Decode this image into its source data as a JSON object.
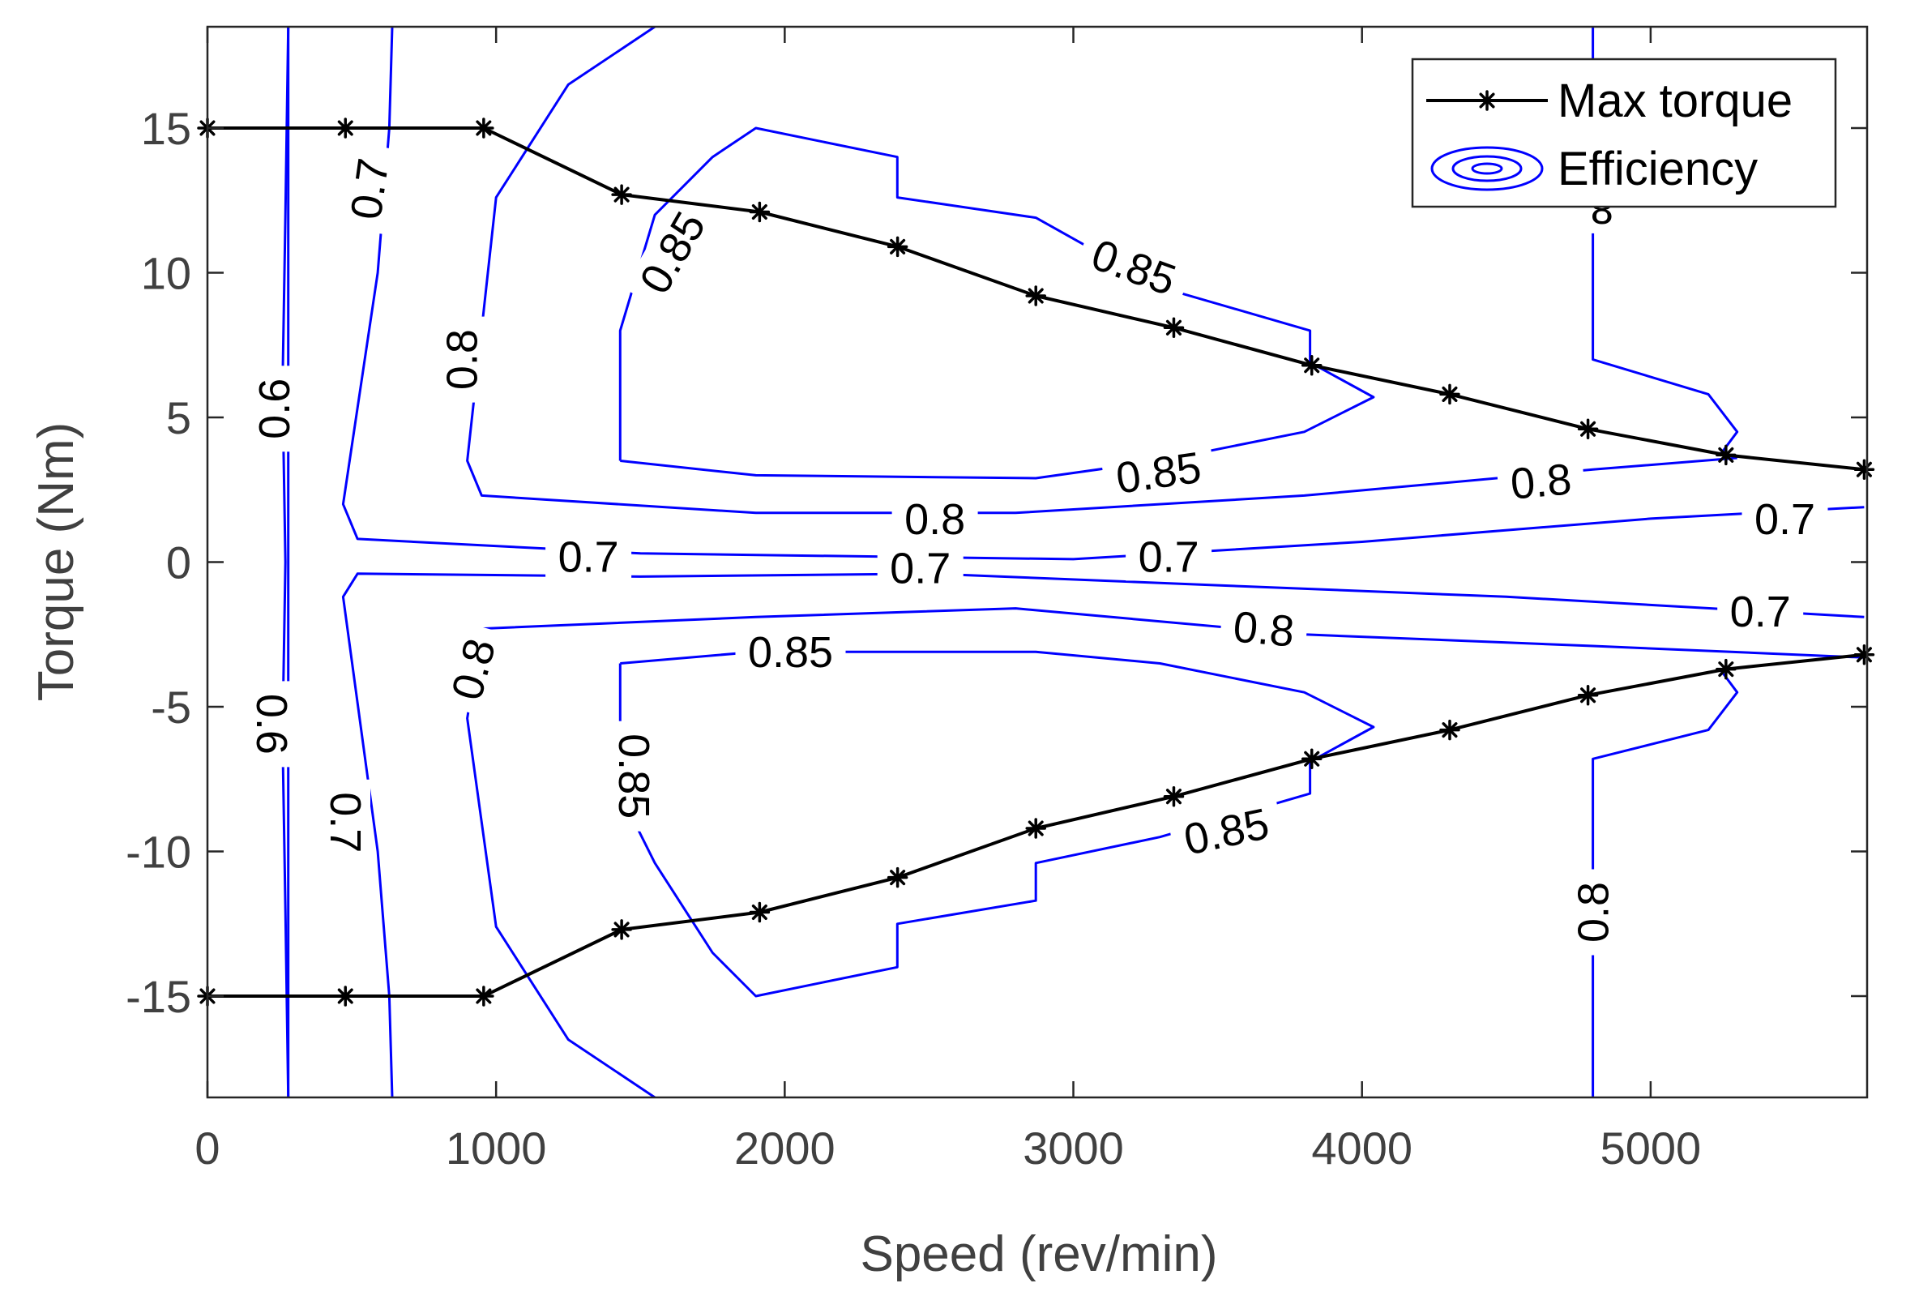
{
  "chart_data": {
    "type": "line",
    "title": "",
    "xlabel": "Speed (rev/min)",
    "ylabel": "Torque (Nm)",
    "xlim": [
      0,
      5750
    ],
    "ylim": [
      -18.5,
      18.5
    ],
    "x_ticks": [
      0,
      1000,
      2000,
      3000,
      4000,
      5000
    ],
    "y_ticks": [
      -15,
      -10,
      -5,
      0,
      5,
      10,
      15
    ],
    "x_tick_labels": [
      "0",
      "1000",
      "2000",
      "3000",
      "4000",
      "5000"
    ],
    "y_tick_labels": [
      "-15",
      "-10",
      "-5",
      "0",
      "5",
      "10",
      "15"
    ],
    "grid": false,
    "legend": {
      "position": "top-right",
      "entries": [
        "Max torque",
        "Efficiency"
      ]
    },
    "colors": {
      "max_torque": "#000000",
      "efficiency": "#0000ff",
      "axes": "#262626",
      "tick_text": "#404040"
    },
    "series": [
      {
        "name": "Max torque",
        "kind": "line-marker",
        "x": [
          0,
          478,
          957,
          1435,
          1913,
          2391,
          2870,
          3348,
          3826,
          4304,
          4783,
          5261,
          5740
        ],
        "y_upper": [
          15,
          15,
          15,
          12.7,
          12.1,
          10.9,
          9.2,
          8.1,
          6.8,
          5.8,
          4.6,
          3.7,
          3.2
        ],
        "y_lower": [
          -15,
          -15,
          -15,
          -12.7,
          -12.1,
          -10.9,
          -9.2,
          -8.1,
          -6.8,
          -5.8,
          -4.6,
          -3.7,
          -3.2
        ]
      }
    ],
    "contours": [
      {
        "level": "0.6",
        "segments": [
          [
            [
              280,
              18.5
            ],
            [
              280,
              -18.5
            ]
          ],
          [
            [
              280,
              18.5
            ],
            [
              270,
              12
            ],
            [
              260,
              6
            ],
            [
              270,
              0
            ],
            [
              260,
              -6
            ],
            [
              270,
              -12
            ],
            [
              280,
              -18.5
            ]
          ]
        ]
      },
      {
        "level": "0.7",
        "segments": [
          [
            [
              640,
              18.5
            ],
            [
              630,
              15
            ],
            [
              590,
              10
            ],
            [
              470,
              2
            ],
            [
              520,
              0.8
            ],
            [
              1500,
              0.3
            ],
            [
              3000,
              0.1
            ],
            [
              4000,
              0.7
            ],
            [
              5000,
              1.5
            ],
            [
              5740,
              1.9
            ]
          ],
          [
            [
              640,
              -18.5
            ],
            [
              630,
              -15
            ],
            [
              590,
              -10
            ],
            [
              470,
              -1.2
            ],
            [
              520,
              -0.4
            ],
            [
              1500,
              -0.5
            ],
            [
              2500,
              -0.4
            ],
            [
              3500,
              -0.8
            ],
            [
              4500,
              -1.2
            ],
            [
              5740,
              -1.9
            ]
          ]
        ]
      },
      {
        "level": "0.8",
        "segments": [
          [
            [
              1550,
              18.5
            ],
            [
              1250,
              16.5
            ],
            [
              1000,
              12.6
            ],
            [
              900,
              3.5
            ],
            [
              950,
              2.3
            ],
            [
              1900,
              1.7
            ],
            [
              2800,
              1.7
            ],
            [
              3800,
              2.3
            ],
            [
              4800,
              3.2
            ],
            [
              5300,
              3.6
            ]
          ],
          [
            [
              1550,
              -18.5
            ],
            [
              1250,
              -16.5
            ],
            [
              1000,
              -12.6
            ],
            [
              900,
              -5.4
            ],
            [
              950,
              -2.3
            ],
            [
              1900,
              -1.9
            ],
            [
              2800,
              -1.6
            ],
            [
              3800,
              -2.5
            ],
            [
              4800,
              -2.9
            ],
            [
              5740,
              -3.3
            ]
          ],
          [
            [
              4800,
              18.5
            ],
            [
              4800,
              7
            ],
            [
              5200,
              5.8
            ],
            [
              5300,
              4.5
            ],
            [
              5240,
              3.7
            ]
          ],
          [
            [
              4800,
              -18.5
            ],
            [
              4800,
              -6.8
            ],
            [
              5200,
              -5.8
            ],
            [
              5300,
              -4.5
            ],
            [
              5240,
              -3.7
            ]
          ]
        ]
      },
      {
        "level": "0.85",
        "segments": [
          [
            [
              1430,
              3.5
            ],
            [
              1430,
              8
            ],
            [
              1550,
              12
            ],
            [
              1750,
              14
            ],
            [
              1900,
              15
            ],
            [
              2390,
              14
            ],
            [
              2390,
              12.6
            ],
            [
              2870,
              11.9
            ],
            [
              3300,
              9.5
            ],
            [
              3820,
              8
            ],
            [
              3820,
              6.9
            ],
            [
              4040,
              5.7
            ],
            [
              3800,
              4.5
            ],
            [
              3300,
              3.5
            ],
            [
              2870,
              2.9
            ],
            [
              1900,
              3
            ],
            [
              1430,
              3.5
            ]
          ],
          [
            [
              1430,
              -3.5
            ],
            [
              1430,
              -8
            ],
            [
              1550,
              -10.4
            ],
            [
              1750,
              -13.5
            ],
            [
              1900,
              -15
            ],
            [
              2390,
              -14
            ],
            [
              2390,
              -12.5
            ],
            [
              2870,
              -11.7
            ],
            [
              2870,
              -10.4
            ],
            [
              3300,
              -9.5
            ],
            [
              3820,
              -8
            ],
            [
              3820,
              -6.9
            ],
            [
              4040,
              -5.7
            ],
            [
              3800,
              -4.5
            ],
            [
              3300,
              -3.5
            ],
            [
              2870,
              -3.1
            ],
            [
              1900,
              -3.1
            ],
            [
              1430,
              -3.5
            ]
          ]
        ]
      }
    ],
    "contour_labels": [
      {
        "text": "0.6",
        "x": 230,
        "y": 5.3,
        "angle": -90
      },
      {
        "text": "0.7",
        "x": 560,
        "y": 12.9,
        "angle": -82
      },
      {
        "text": "0.8",
        "x": 880,
        "y": 7,
        "angle": -90
      },
      {
        "text": "0.85",
        "x": 1610,
        "y": 10.7,
        "angle": -60
      },
      {
        "text": "0.85",
        "x": 3210,
        "y": 10.2,
        "angle": 20
      },
      {
        "text": "0.85",
        "x": 3295,
        "y": 3.1,
        "angle": -8
      },
      {
        "text": "0.8",
        "x": 2520,
        "y": 1.5,
        "angle": 0
      },
      {
        "text": "0.8",
        "x": 4620,
        "y": 2.8,
        "angle": -5
      },
      {
        "text": "0.7",
        "x": 5465,
        "y": 1.5,
        "angle": 0
      },
      {
        "text": "0.7",
        "x": 1320,
        "y": 0.2,
        "angle": 0
      },
      {
        "text": "0.7",
        "x": 2470,
        "y": -0.2,
        "angle": 0
      },
      {
        "text": "0.7",
        "x": 3330,
        "y": 0.2,
        "angle": 0
      },
      {
        "text": "0.7",
        "x": 5380,
        "y": -1.7,
        "angle": 0
      },
      {
        "text": "0.8",
        "x": 3660,
        "y": -2.3,
        "angle": 5
      },
      {
        "text": "0.85",
        "x": 2020,
        "y": -3.1,
        "angle": 0
      },
      {
        "text": "0.8",
        "x": 920,
        "y": -3.7,
        "angle": -75
      },
      {
        "text": "0.6",
        "x": 225,
        "y": -5.6,
        "angle": 90
      },
      {
        "text": "0.85",
        "x": 1480,
        "y": -7.4,
        "angle": 90
      },
      {
        "text": "0.7",
        "x": 480,
        "y": -9,
        "angle": 90
      },
      {
        "text": "0.85",
        "x": 3530,
        "y": -9.3,
        "angle": -12
      },
      {
        "text": "0.8",
        "x": 4800,
        "y": -12.1,
        "angle": -90
      },
      {
        "text": "8.",
        "x": 4810,
        "y": 12.2,
        "angle": 180
      }
    ]
  }
}
